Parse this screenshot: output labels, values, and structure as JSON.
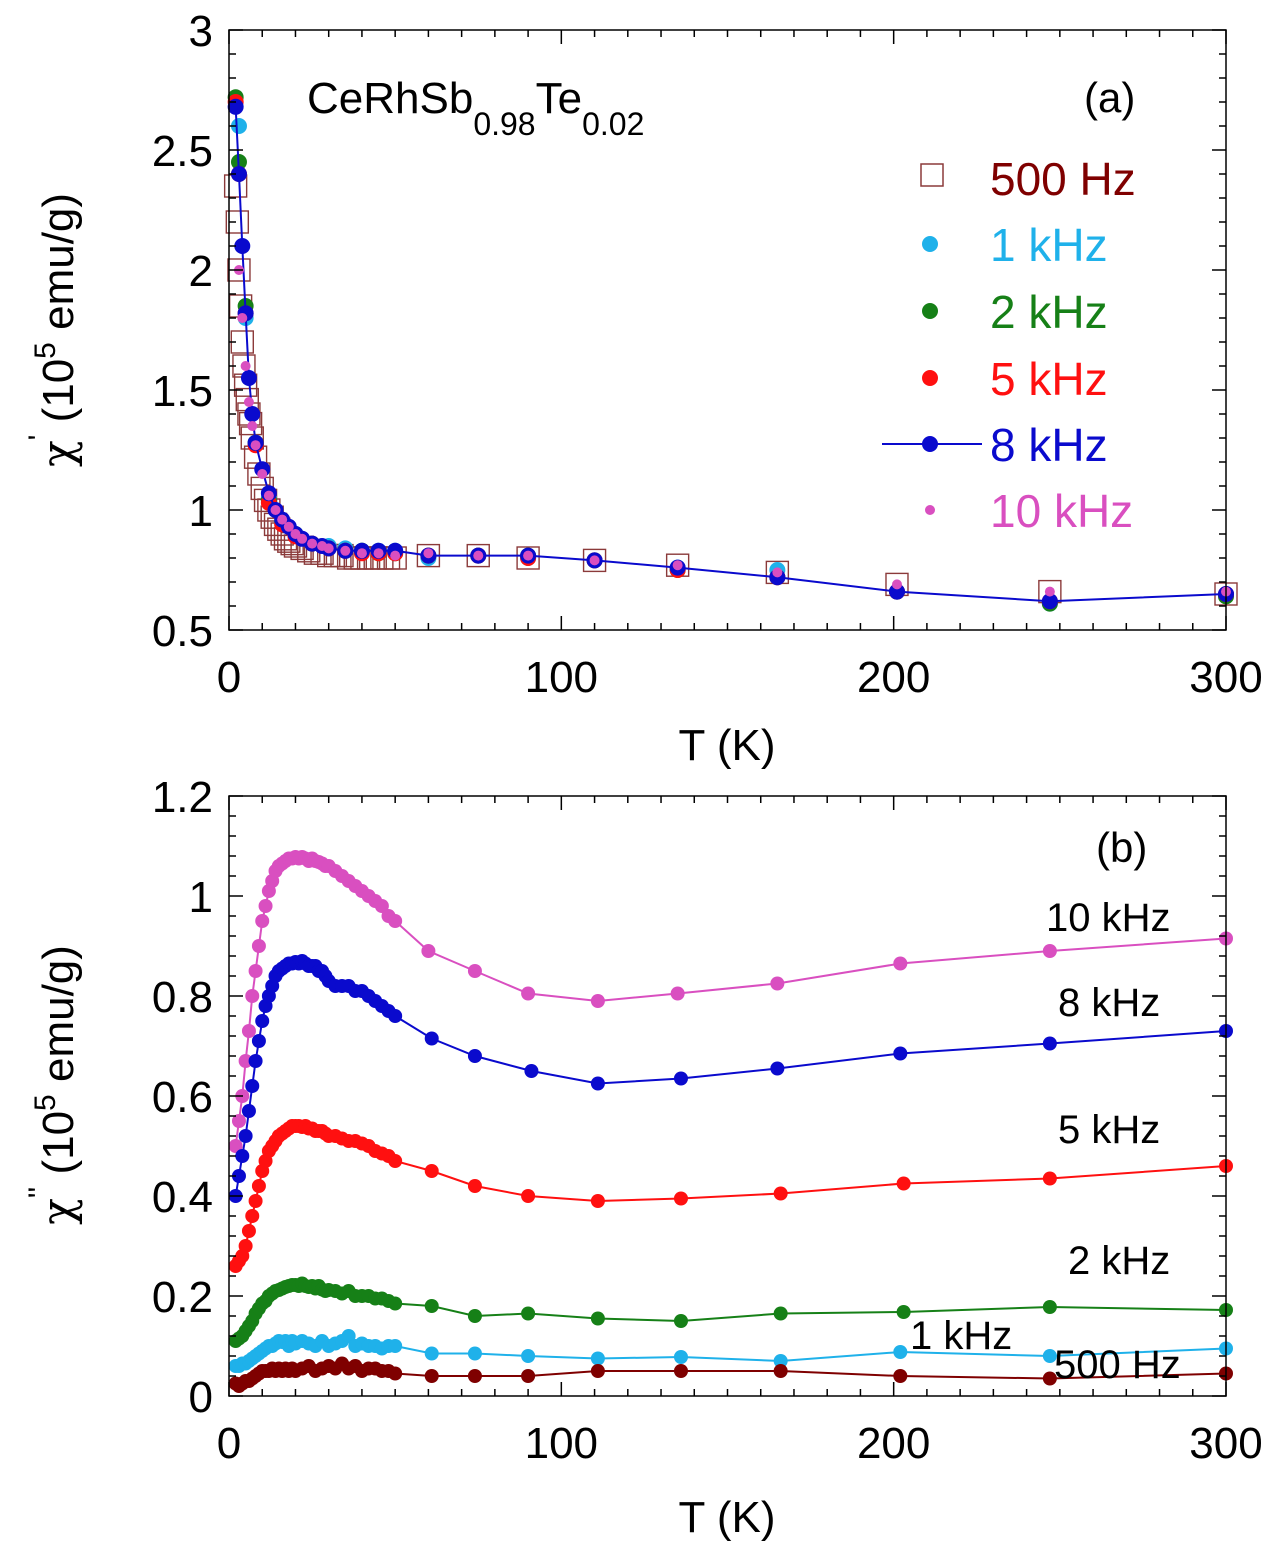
{
  "chart_data": [
    {
      "type": "scatter",
      "panel_label": "(a)",
      "title": "CeRhSb",
      "title_sub1": "0.98",
      "title_mid": "Te",
      "title_sub2": "0.02",
      "xlabel": "T (K)",
      "ylabel_symbol": "χ",
      "ylabel_prime": "'",
      "ylabel_paren": "(10",
      "ylabel_exp": "5",
      "ylabel_unit": " emu/g)",
      "xlim": [
        0,
        300
      ],
      "ylim": [
        0.5,
        3
      ],
      "xticks": [
        "0",
        "100",
        "200",
        "300"
      ],
      "yticks": [
        "0.5",
        "1",
        "1.5",
        "2",
        "2.5",
        "3"
      ],
      "legend": [
        "500 Hz",
        "1 kHz",
        "2 kHz",
        "5 kHz",
        "8 kHz",
        "10 kHz"
      ],
      "colors": [
        "#7f0000",
        "#1fb1ea",
        "#168017",
        "#ff1010",
        "#0a0acd",
        "#d94fc0"
      ],
      "series": [
        {
          "name": "500 Hz",
          "marker": "open-square",
          "x": [
            2,
            2.5,
            3,
            3.5,
            4,
            4.5,
            5,
            5.5,
            6,
            6.5,
            7,
            8,
            9,
            10,
            11,
            12,
            13,
            14,
            15,
            16,
            17,
            18,
            19,
            20,
            22,
            24,
            26,
            28,
            30,
            32,
            34,
            36,
            38,
            40,
            42,
            44,
            46,
            48,
            50,
            60,
            75,
            90,
            110,
            135,
            165,
            201,
            247,
            300
          ],
          "y": [
            2.35,
            2.2,
            2.0,
            1.85,
            1.7,
            1.6,
            1.52,
            1.46,
            1.4,
            1.36,
            1.3,
            1.22,
            1.15,
            1.09,
            1.04,
            1.0,
            0.97,
            0.94,
            0.92,
            0.9,
            0.88,
            0.87,
            0.86,
            0.85,
            0.84,
            0.83,
            0.82,
            0.82,
            0.81,
            0.81,
            0.81,
            0.8,
            0.8,
            0.8,
            0.8,
            0.8,
            0.8,
            0.8,
            0.8,
            0.81,
            0.81,
            0.8,
            0.79,
            0.77,
            0.74,
            0.69,
            0.66,
            0.65
          ]
        },
        {
          "name": "1 kHz",
          "marker": "dot",
          "x": [
            3,
            5,
            8,
            12,
            16,
            20,
            25,
            30,
            35,
            40,
            45,
            50,
            60,
            75,
            90,
            110,
            135,
            165,
            201,
            247,
            300
          ],
          "y": [
            2.6,
            1.8,
            1.28,
            1.05,
            0.95,
            0.9,
            0.86,
            0.85,
            0.84,
            0.83,
            0.83,
            0.83,
            0.8,
            0.81,
            0.8,
            0.79,
            0.76,
            0.75,
            0.66,
            0.61,
            0.65
          ]
        },
        {
          "name": "2 kHz",
          "marker": "dot",
          "x": [
            2,
            3,
            5,
            8,
            12,
            16,
            20,
            25,
            30,
            35,
            40,
            45,
            50,
            60,
            75,
            90,
            110,
            135,
            165,
            201,
            247,
            300
          ],
          "y": [
            2.72,
            2.45,
            1.85,
            1.28,
            1.04,
            0.95,
            0.9,
            0.86,
            0.84,
            0.83,
            0.83,
            0.82,
            0.82,
            0.81,
            0.81,
            0.81,
            0.79,
            0.75,
            0.72,
            0.66,
            0.61,
            0.64
          ]
        },
        {
          "name": "5 kHz",
          "marker": "dot",
          "x": [
            2,
            3,
            5,
            8,
            12,
            16,
            20,
            25,
            30,
            35,
            40,
            45,
            50,
            60,
            75,
            90,
            110,
            135,
            165,
            201,
            247,
            300
          ],
          "y": [
            2.7,
            2.4,
            1.82,
            1.27,
            1.03,
            0.94,
            0.89,
            0.86,
            0.84,
            0.83,
            0.82,
            0.82,
            0.82,
            0.81,
            0.81,
            0.8,
            0.79,
            0.75,
            0.72,
            0.66,
            0.62,
            0.65
          ]
        },
        {
          "name": "8 kHz",
          "marker": "dot-line",
          "x": [
            2,
            3,
            4,
            5,
            6,
            7,
            8,
            10,
            12,
            14,
            16,
            18,
            20,
            22,
            25,
            28,
            30,
            35,
            40,
            45,
            50,
            60,
            75,
            90,
            110,
            135,
            165,
            201,
            247,
            300
          ],
          "y": [
            2.68,
            2.4,
            2.1,
            1.82,
            1.55,
            1.4,
            1.28,
            1.17,
            1.07,
            1.0,
            0.96,
            0.93,
            0.9,
            0.88,
            0.86,
            0.85,
            0.84,
            0.83,
            0.83,
            0.83,
            0.83,
            0.81,
            0.81,
            0.81,
            0.79,
            0.76,
            0.72,
            0.66,
            0.62,
            0.65
          ]
        },
        {
          "name": "10 kHz",
          "marker": "small-dot",
          "x": [
            3,
            4,
            5,
            6,
            7,
            8,
            10,
            12,
            14,
            16,
            18,
            20,
            22,
            25,
            28,
            30,
            35,
            40,
            45,
            50,
            60,
            75,
            90,
            110,
            135,
            165,
            201,
            247,
            300
          ],
          "y": [
            2.0,
            1.8,
            1.6,
            1.45,
            1.35,
            1.27,
            1.15,
            1.06,
            1.0,
            0.96,
            0.93,
            0.9,
            0.88,
            0.86,
            0.85,
            0.84,
            0.83,
            0.82,
            0.82,
            0.81,
            0.82,
            0.81,
            0.81,
            0.79,
            0.77,
            0.74,
            0.69,
            0.66,
            0.66
          ]
        }
      ]
    },
    {
      "type": "line",
      "panel_label": "(b)",
      "xlabel": "T (K)",
      "ylabel_symbol": "χ",
      "ylabel_prime": "''",
      "ylabel_paren": "(10",
      "ylabel_exp": "5",
      "ylabel_unit": " emu/g)",
      "xlim": [
        0,
        300
      ],
      "ylim": [
        0,
        1.2
      ],
      "xticks": [
        "0",
        "100",
        "200",
        "300"
      ],
      "yticks": [
        "0",
        "0.2",
        "0.4",
        "0.6",
        "0.8",
        "1",
        "1.2"
      ],
      "labels": [
        "10 kHz",
        "8 kHz",
        "5 kHz",
        "2 kHz",
        "1 kHz",
        "500 Hz"
      ],
      "series": [
        {
          "name": "10 kHz",
          "x": [
            2,
            3,
            4,
            5,
            6,
            7,
            8,
            9,
            10,
            11,
            12,
            13,
            14,
            15,
            16,
            17,
            18,
            19,
            20,
            21,
            22,
            23,
            24,
            25,
            26,
            27,
            28,
            29,
            30,
            32,
            34,
            36,
            38,
            40,
            42,
            44,
            46,
            48,
            50,
            60,
            74,
            90,
            111,
            135,
            165,
            202,
            247,
            300
          ],
          "y": [
            0.5,
            0.55,
            0.6,
            0.67,
            0.73,
            0.8,
            0.85,
            0.9,
            0.95,
            0.98,
            1.01,
            1.03,
            1.05,
            1.06,
            1.065,
            1.07,
            1.075,
            1.075,
            1.078,
            1.075,
            1.078,
            1.075,
            1.07,
            1.075,
            1.07,
            1.068,
            1.065,
            1.06,
            1.06,
            1.05,
            1.04,
            1.03,
            1.02,
            1.01,
            1.0,
            0.99,
            0.98,
            0.96,
            0.95,
            0.89,
            0.85,
            0.805,
            0.79,
            0.805,
            0.825,
            0.865,
            0.89,
            0.915
          ]
        },
        {
          "name": "8 kHz",
          "x": [
            2,
            3,
            4,
            5,
            6,
            7,
            8,
            9,
            10,
            11,
            12,
            13,
            14,
            15,
            16,
            17,
            18,
            19,
            20,
            21,
            22,
            23,
            24,
            25,
            26,
            27,
            28,
            29,
            30,
            32,
            34,
            36,
            38,
            40,
            42,
            44,
            46,
            48,
            50,
            61,
            74,
            91,
            111,
            136,
            165,
            202,
            247,
            300
          ],
          "y": [
            0.4,
            0.44,
            0.48,
            0.52,
            0.57,
            0.62,
            0.67,
            0.71,
            0.75,
            0.78,
            0.8,
            0.82,
            0.84,
            0.85,
            0.855,
            0.86,
            0.865,
            0.865,
            0.868,
            0.865,
            0.87,
            0.865,
            0.86,
            0.86,
            0.86,
            0.85,
            0.85,
            0.84,
            0.83,
            0.82,
            0.82,
            0.82,
            0.81,
            0.81,
            0.8,
            0.79,
            0.78,
            0.77,
            0.76,
            0.715,
            0.68,
            0.65,
            0.625,
            0.635,
            0.655,
            0.685,
            0.705,
            0.73
          ]
        },
        {
          "name": "5 kHz",
          "x": [
            2,
            3,
            4,
            5,
            6,
            7,
            8,
            9,
            10,
            11,
            12,
            13,
            14,
            15,
            16,
            17,
            18,
            19,
            20,
            21,
            22,
            23,
            24,
            25,
            26,
            27,
            28,
            29,
            30,
            32,
            34,
            36,
            38,
            40,
            42,
            44,
            46,
            48,
            50,
            61,
            74,
            90,
            111,
            136,
            166,
            203,
            247,
            300
          ],
          "y": [
            0.26,
            0.27,
            0.28,
            0.3,
            0.33,
            0.36,
            0.39,
            0.42,
            0.45,
            0.47,
            0.49,
            0.5,
            0.51,
            0.52,
            0.525,
            0.53,
            0.535,
            0.54,
            0.54,
            0.54,
            0.538,
            0.54,
            0.535,
            0.535,
            0.53,
            0.53,
            0.53,
            0.525,
            0.52,
            0.52,
            0.515,
            0.51,
            0.51,
            0.505,
            0.5,
            0.49,
            0.485,
            0.48,
            0.47,
            0.45,
            0.42,
            0.4,
            0.39,
            0.395,
            0.405,
            0.425,
            0.435,
            0.46
          ]
        },
        {
          "name": "2 kHz",
          "x": [
            2,
            3,
            4,
            5,
            6,
            7,
            8,
            9,
            10,
            11,
            12,
            13,
            14,
            15,
            16,
            17,
            18,
            19,
            20,
            21,
            22,
            23,
            24,
            25,
            26,
            27,
            28,
            29,
            30,
            32,
            34,
            36,
            38,
            40,
            42,
            44,
            46,
            48,
            50,
            61,
            74,
            90,
            111,
            136,
            166,
            203,
            247,
            300
          ],
          "y": [
            0.11,
            0.115,
            0.12,
            0.13,
            0.14,
            0.15,
            0.165,
            0.175,
            0.185,
            0.19,
            0.2,
            0.205,
            0.21,
            0.212,
            0.215,
            0.218,
            0.22,
            0.222,
            0.222,
            0.22,
            0.225,
            0.22,
            0.218,
            0.22,
            0.215,
            0.22,
            0.213,
            0.21,
            0.212,
            0.21,
            0.205,
            0.21,
            0.2,
            0.2,
            0.2,
            0.195,
            0.195,
            0.19,
            0.185,
            0.18,
            0.16,
            0.165,
            0.155,
            0.15,
            0.165,
            0.168,
            0.178,
            0.172
          ]
        },
        {
          "name": "1 kHz",
          "x": [
            2,
            3,
            4,
            5,
            6,
            7,
            8,
            9,
            10,
            11,
            12,
            13,
            14,
            15,
            16,
            17,
            18,
            19,
            20,
            22,
            24,
            26,
            28,
            30,
            32,
            34,
            36,
            38,
            40,
            42,
            44,
            46,
            48,
            50,
            61,
            74,
            90,
            111,
            136,
            166,
            202,
            247,
            300
          ],
          "y": [
            0.06,
            0.06,
            0.065,
            0.065,
            0.07,
            0.075,
            0.08,
            0.085,
            0.09,
            0.095,
            0.1,
            0.1,
            0.105,
            0.11,
            0.108,
            0.11,
            0.1,
            0.11,
            0.105,
            0.11,
            0.105,
            0.1,
            0.11,
            0.1,
            0.105,
            0.11,
            0.12,
            0.1,
            0.105,
            0.1,
            0.1,
            0.095,
            0.1,
            0.1,
            0.085,
            0.085,
            0.08,
            0.075,
            0.078,
            0.07,
            0.088,
            0.08,
            0.095
          ]
        },
        {
          "name": "500 Hz",
          "x": [
            2,
            3,
            4,
            5,
            6,
            7,
            8,
            9,
            10,
            11,
            12,
            13,
            14,
            15,
            16,
            17,
            18,
            19,
            20,
            22,
            24,
            26,
            28,
            30,
            32,
            34,
            36,
            38,
            40,
            42,
            44,
            46,
            48,
            50,
            61,
            74,
            90,
            111,
            136,
            166,
            202,
            247,
            300
          ],
          "y": [
            0.025,
            0.02,
            0.025,
            0.03,
            0.03,
            0.035,
            0.04,
            0.045,
            0.05,
            0.05,
            0.05,
            0.055,
            0.05,
            0.055,
            0.05,
            0.055,
            0.05,
            0.055,
            0.05,
            0.055,
            0.06,
            0.05,
            0.055,
            0.06,
            0.055,
            0.065,
            0.055,
            0.06,
            0.05,
            0.055,
            0.055,
            0.05,
            0.05,
            0.045,
            0.04,
            0.04,
            0.04,
            0.05,
            0.05,
            0.05,
            0.04,
            0.035,
            0.045
          ]
        }
      ]
    }
  ]
}
